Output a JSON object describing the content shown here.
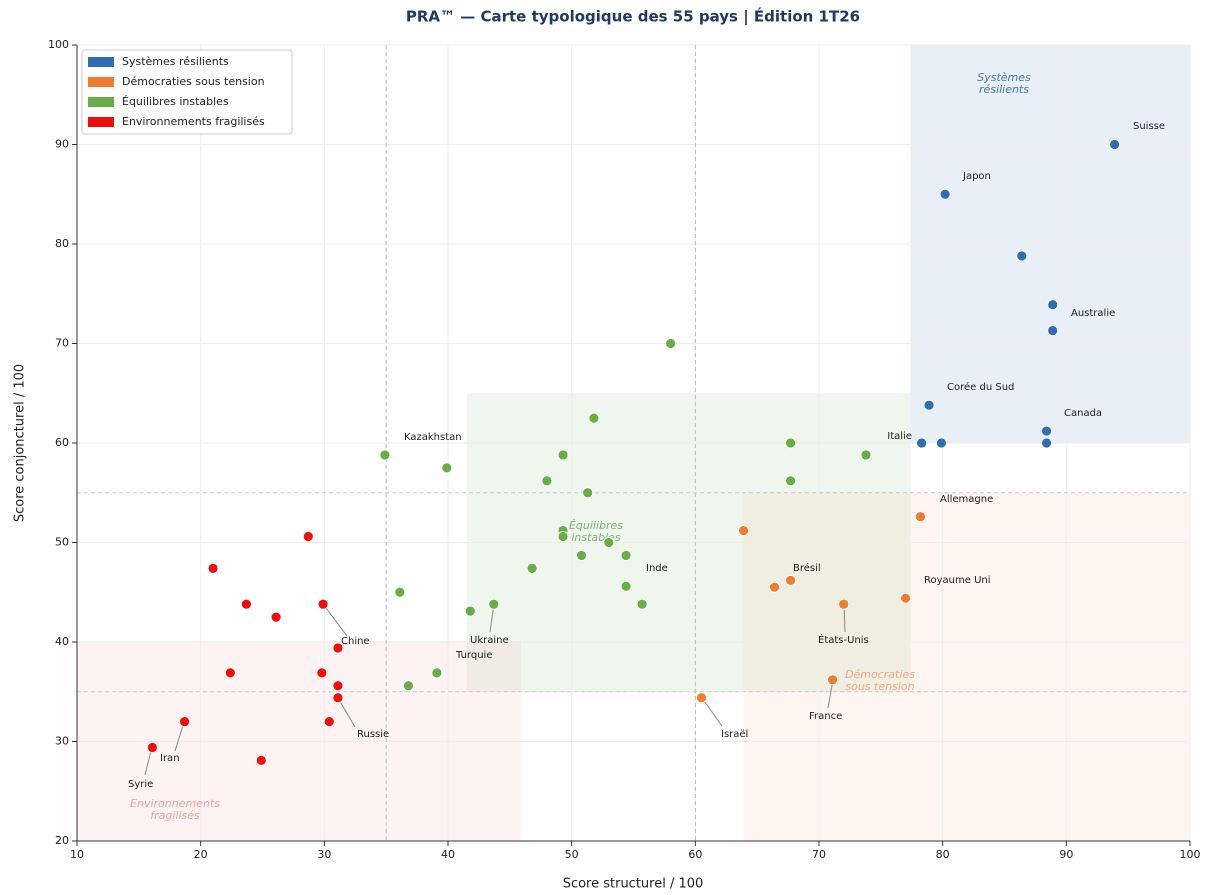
{
  "chart_data": {
    "type": "scatter",
    "title": "PRA™ — Carte typologique des 55 pays | Édition 1T26",
    "xlabel": "Score structurel / 100",
    "ylabel": "Score conjoncturel / 100",
    "xlim": [
      10,
      100
    ],
    "ylim": [
      20,
      100
    ],
    "xticks": [
      10,
      20,
      30,
      40,
      50,
      60,
      70,
      80,
      90,
      100
    ],
    "yticks": [
      20,
      30,
      40,
      50,
      60,
      70,
      80,
      90,
      100
    ],
    "grid": true,
    "legend": "upper left",
    "reference_lines": {
      "x": [
        35,
        60
      ],
      "y": [
        35,
        55
      ]
    },
    "zones": [
      {
        "lines": [
          "Systèmes",
          "résilients"
        ],
        "color": "#4a78b8",
        "xlim": [
          77.4,
          100
        ],
        "ylim": [
          60,
          100
        ]
      },
      {
        "lines": [
          "Équilibres",
          "instables"
        ],
        "color": "#7fb56a",
        "xlim": [
          41.5,
          77.4
        ],
        "ylim": [
          35,
          65
        ]
      },
      {
        "lines": [
          "Démocraties",
          "sous tension"
        ],
        "color": "#f4a98a",
        "xlim": [
          63.9,
          100
        ],
        "ylim": [
          20,
          55
        ]
      },
      {
        "lines": [
          "Environnements",
          "fragilisés"
        ],
        "color": "#f4a0a0",
        "xlim": [
          10,
          45.9
        ],
        "ylim": [
          20,
          40.1
        ]
      }
    ],
    "series": [
      {
        "name": "Systèmes résilients",
        "color": "#2f6db5",
        "x": [
          93.9,
          80.2,
          86.4,
          88.9,
          88.9,
          78.9,
          88.4,
          88.4,
          78.3,
          79.9
        ],
        "values": [
          90.0,
          85.0,
          78.8,
          73.9,
          71.3,
          63.8,
          61.2,
          60.0,
          60.0,
          60.0
        ]
      },
      {
        "name": "Démocraties sous tension",
        "color": "#ef7d2f",
        "x": [
          63.9,
          78.2,
          67.7,
          66.4,
          72.0,
          77.0,
          71.1,
          60.5
        ],
        "values": [
          51.2,
          52.6,
          46.2,
          45.5,
          43.8,
          44.4,
          36.2,
          34.4
        ]
      },
      {
        "name": "Équilibres instables",
        "color": "#69ad47",
        "x": [
          58.0,
          51.8,
          49.3,
          34.9,
          39.9,
          48.0,
          51.3,
          67.7,
          73.8,
          67.7,
          49.3,
          49.3,
          53.0,
          50.8,
          54.4,
          46.8,
          54.4,
          55.7,
          43.7,
          41.8,
          36.1,
          39.1,
          36.8
        ],
        "values": [
          70.0,
          62.5,
          58.8,
          58.8,
          57.5,
          56.2,
          55.0,
          60.0,
          58.8,
          56.2,
          51.2,
          50.6,
          50.0,
          48.7,
          48.7,
          47.4,
          45.6,
          43.8,
          43.8,
          43.1,
          45.0,
          36.9,
          35.6
        ]
      },
      {
        "name": "Environnements fragilisés",
        "color": "#f20d0d",
        "x": [
          28.7,
          21.0,
          23.7,
          26.1,
          29.9,
          31.1,
          22.4,
          29.8,
          31.1,
          31.1,
          30.4,
          18.7,
          16.1,
          24.9
        ],
        "values": [
          50.6,
          47.4,
          43.8,
          42.5,
          43.8,
          39.4,
          36.9,
          36.9,
          35.6,
          34.4,
          32.0,
          32.0,
          29.4,
          28.1
        ]
      }
    ],
    "annotations": [
      "Suisse",
      "Japon",
      "Australie",
      "Corée du Sud",
      "Canada",
      "Italie",
      "Kazakhstan",
      "Allemagne",
      "Brésil",
      "Royaume Uni",
      "États-Unis",
      "France",
      "Israël",
      "Inde",
      "Ukraine",
      "Turquie",
      "Chine",
      "Russie",
      "Iran",
      "Syrie"
    ]
  }
}
